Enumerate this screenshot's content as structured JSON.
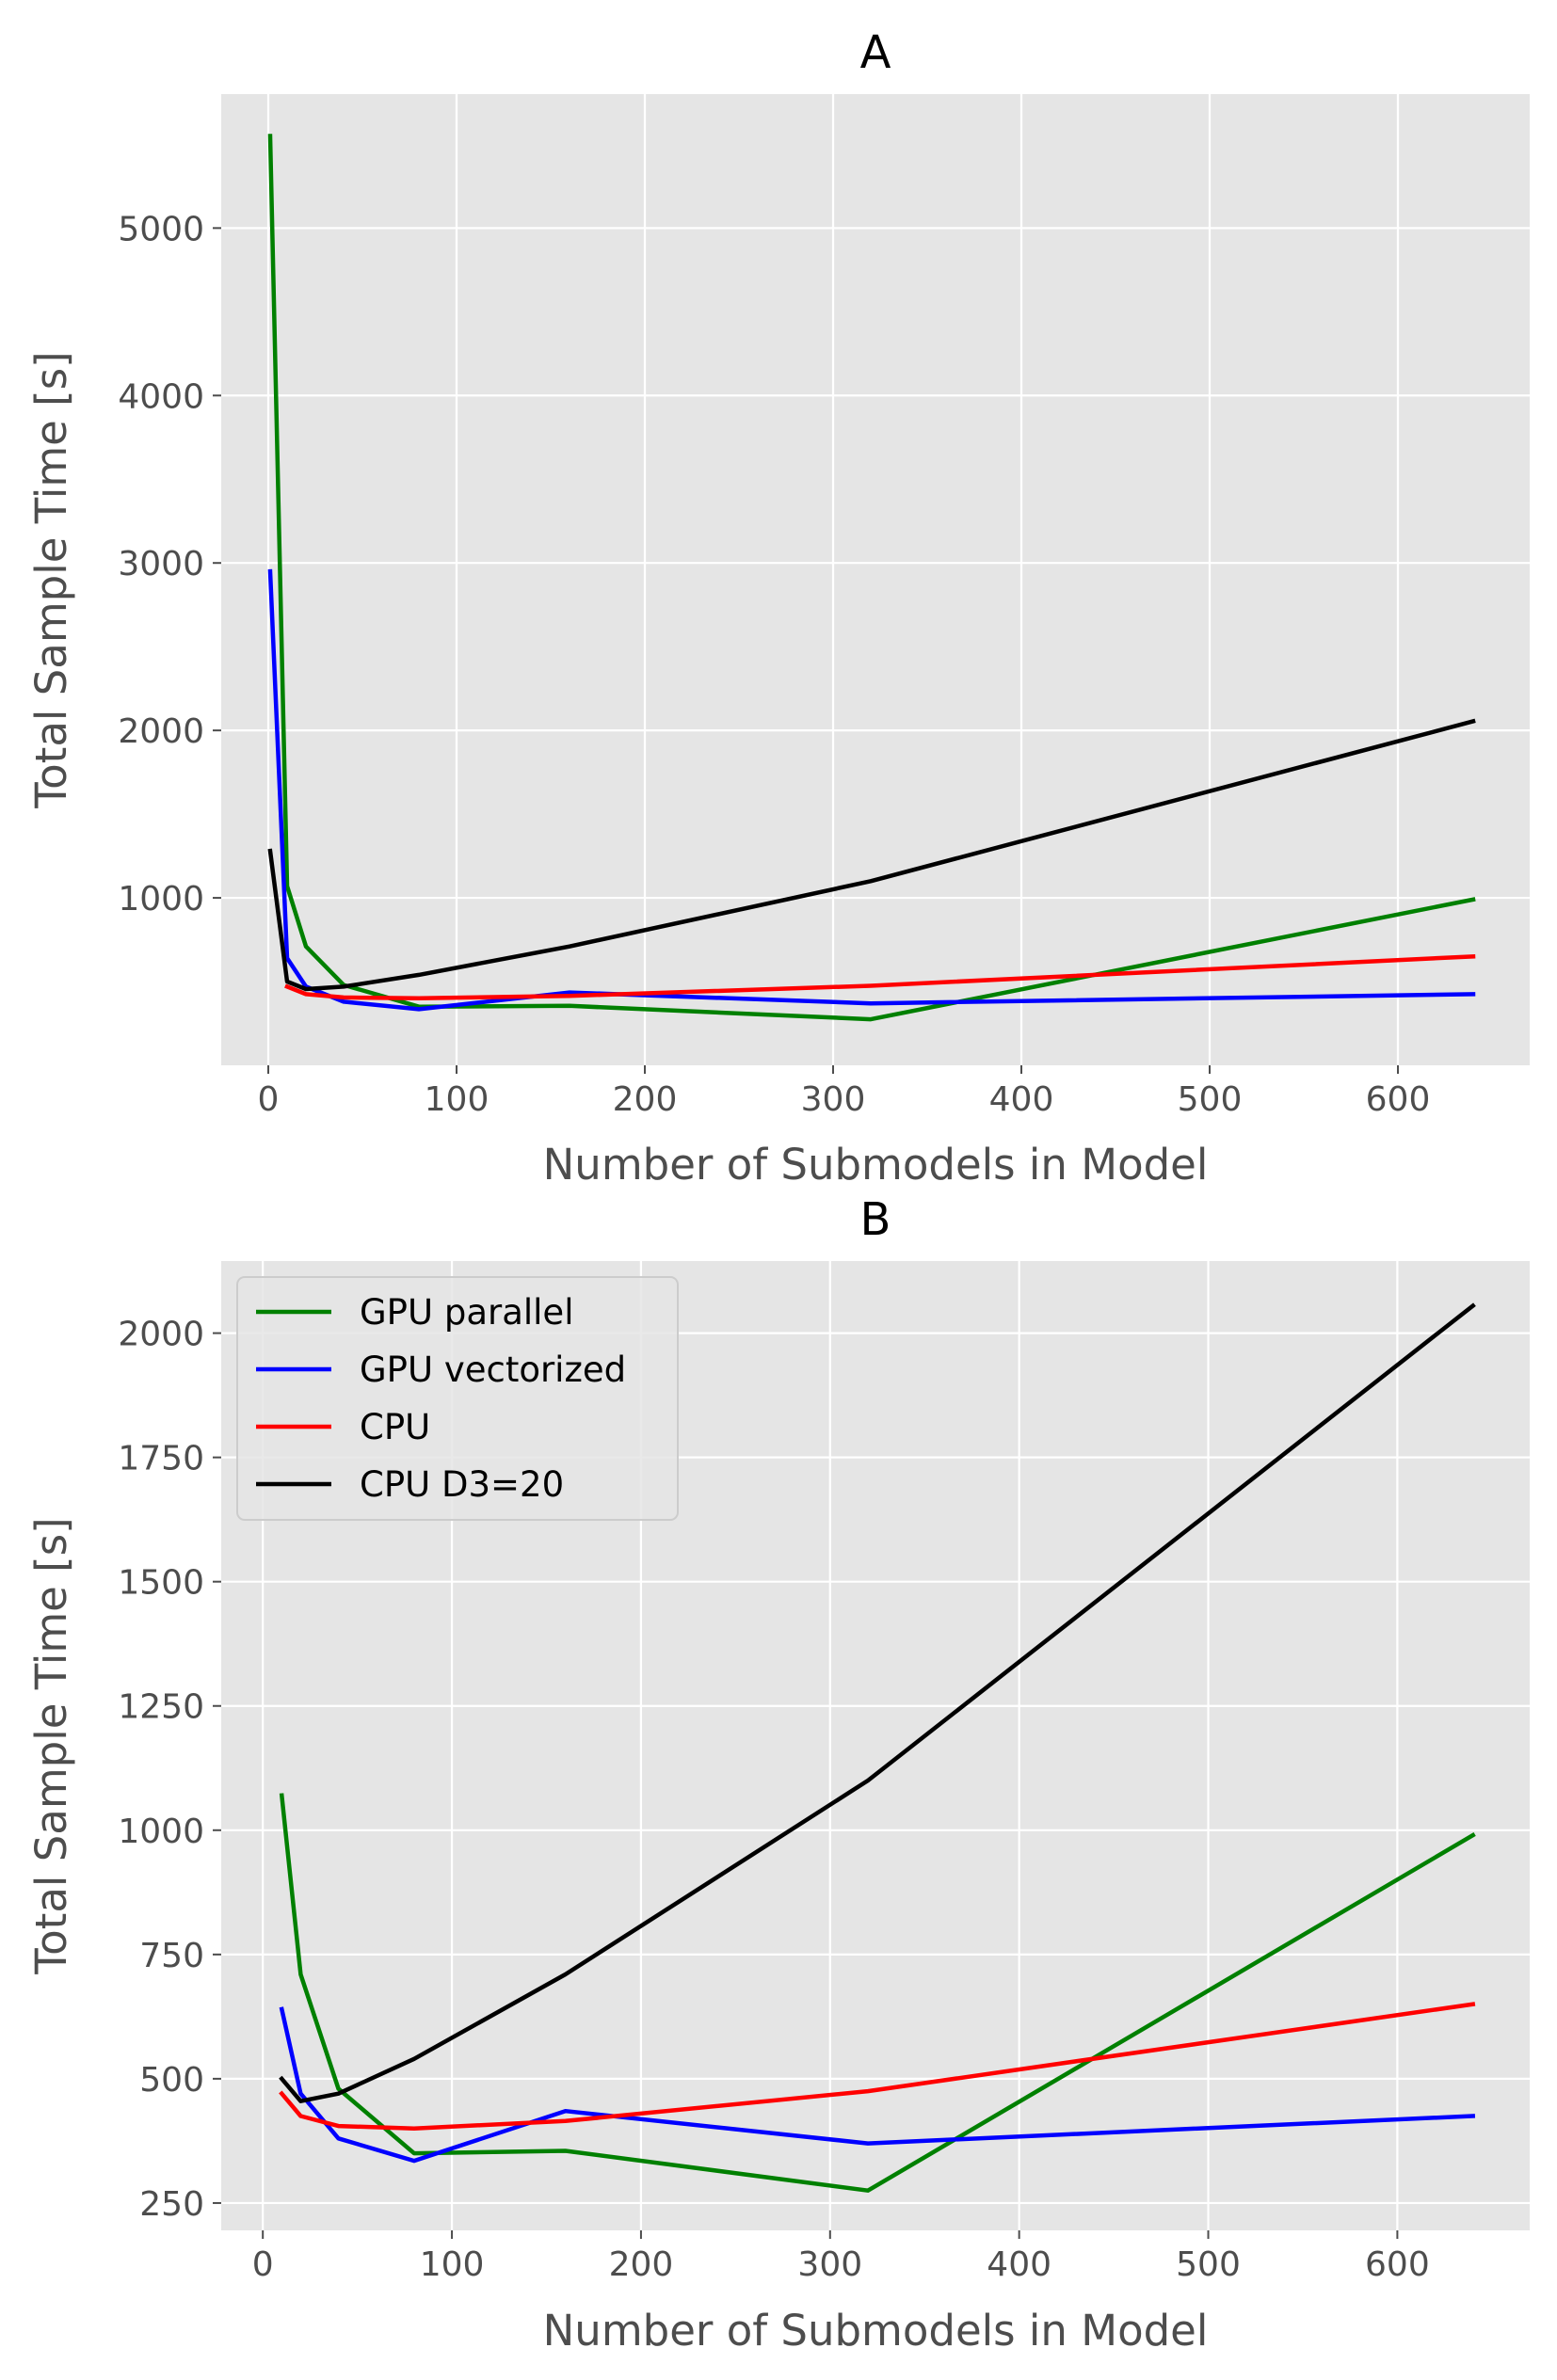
{
  "chart_data": [
    {
      "type": "line",
      "title": "A",
      "xlabel": "Number of Submodels in Model",
      "ylabel": "Total Sample Time [s]",
      "xlim": [
        -25,
        670
      ],
      "ylim": [
        0,
        5800
      ],
      "xticks": [
        0,
        100,
        200,
        300,
        400,
        500,
        600
      ],
      "yticks": [
        1000,
        2000,
        3000,
        4000,
        5000
      ],
      "grid": true,
      "legend": null,
      "series": [
        {
          "name": "GPU parallel",
          "color": "#008000",
          "x": [
            1,
            10,
            20,
            40,
            80,
            160,
            320,
            640
          ],
          "y": [
            5550,
            1070,
            710,
            480,
            350,
            355,
            275,
            990
          ]
        },
        {
          "name": "GPU vectorized",
          "color": "#0000ff",
          "x": [
            1,
            10,
            20,
            40,
            80,
            160,
            320,
            640
          ],
          "y": [
            2950,
            640,
            470,
            380,
            335,
            435,
            370,
            425
          ]
        },
        {
          "name": "CPU",
          "color": "#ff0000",
          "x": [
            10,
            20,
            40,
            80,
            160,
            320,
            640
          ],
          "y": [
            470,
            425,
            405,
            400,
            415,
            475,
            650
          ]
        },
        {
          "name": "CPU D3=20",
          "color": "#000000",
          "x": [
            1,
            10,
            20,
            40,
            80,
            160,
            320,
            640
          ],
          "y": [
            1280,
            500,
            455,
            470,
            540,
            710,
            1100,
            2055
          ]
        }
      ]
    },
    {
      "type": "line",
      "title": "B",
      "xlabel": "Number of Submodels in Model",
      "ylabel": "Total Sample Time [s]",
      "xlim": [
        -22,
        670
      ],
      "ylim": [
        195,
        2145
      ],
      "xticks": [
        0,
        100,
        200,
        300,
        400,
        500,
        600
      ],
      "yticks": [
        250,
        500,
        750,
        1000,
        1250,
        1500,
        1750,
        2000
      ],
      "grid": true,
      "legend": "top-left",
      "series": [
        {
          "name": "GPU parallel",
          "color": "#008000",
          "x": [
            10,
            20,
            40,
            80,
            160,
            320,
            640
          ],
          "y": [
            1070,
            710,
            480,
            350,
            355,
            275,
            990
          ]
        },
        {
          "name": "GPU vectorized",
          "color": "#0000ff",
          "x": [
            10,
            20,
            40,
            80,
            160,
            320,
            640
          ],
          "y": [
            640,
            470,
            380,
            335,
            435,
            370,
            425
          ]
        },
        {
          "name": "CPU",
          "color": "#ff0000",
          "x": [
            10,
            20,
            40,
            80,
            160,
            320,
            640
          ],
          "y": [
            470,
            425,
            405,
            400,
            415,
            475,
            650
          ]
        },
        {
          "name": "CPU D3=20",
          "color": "#000000",
          "x": [
            10,
            20,
            40,
            80,
            160,
            320,
            640
          ],
          "y": [
            500,
            455,
            470,
            540,
            710,
            1100,
            2055
          ]
        }
      ]
    }
  ]
}
